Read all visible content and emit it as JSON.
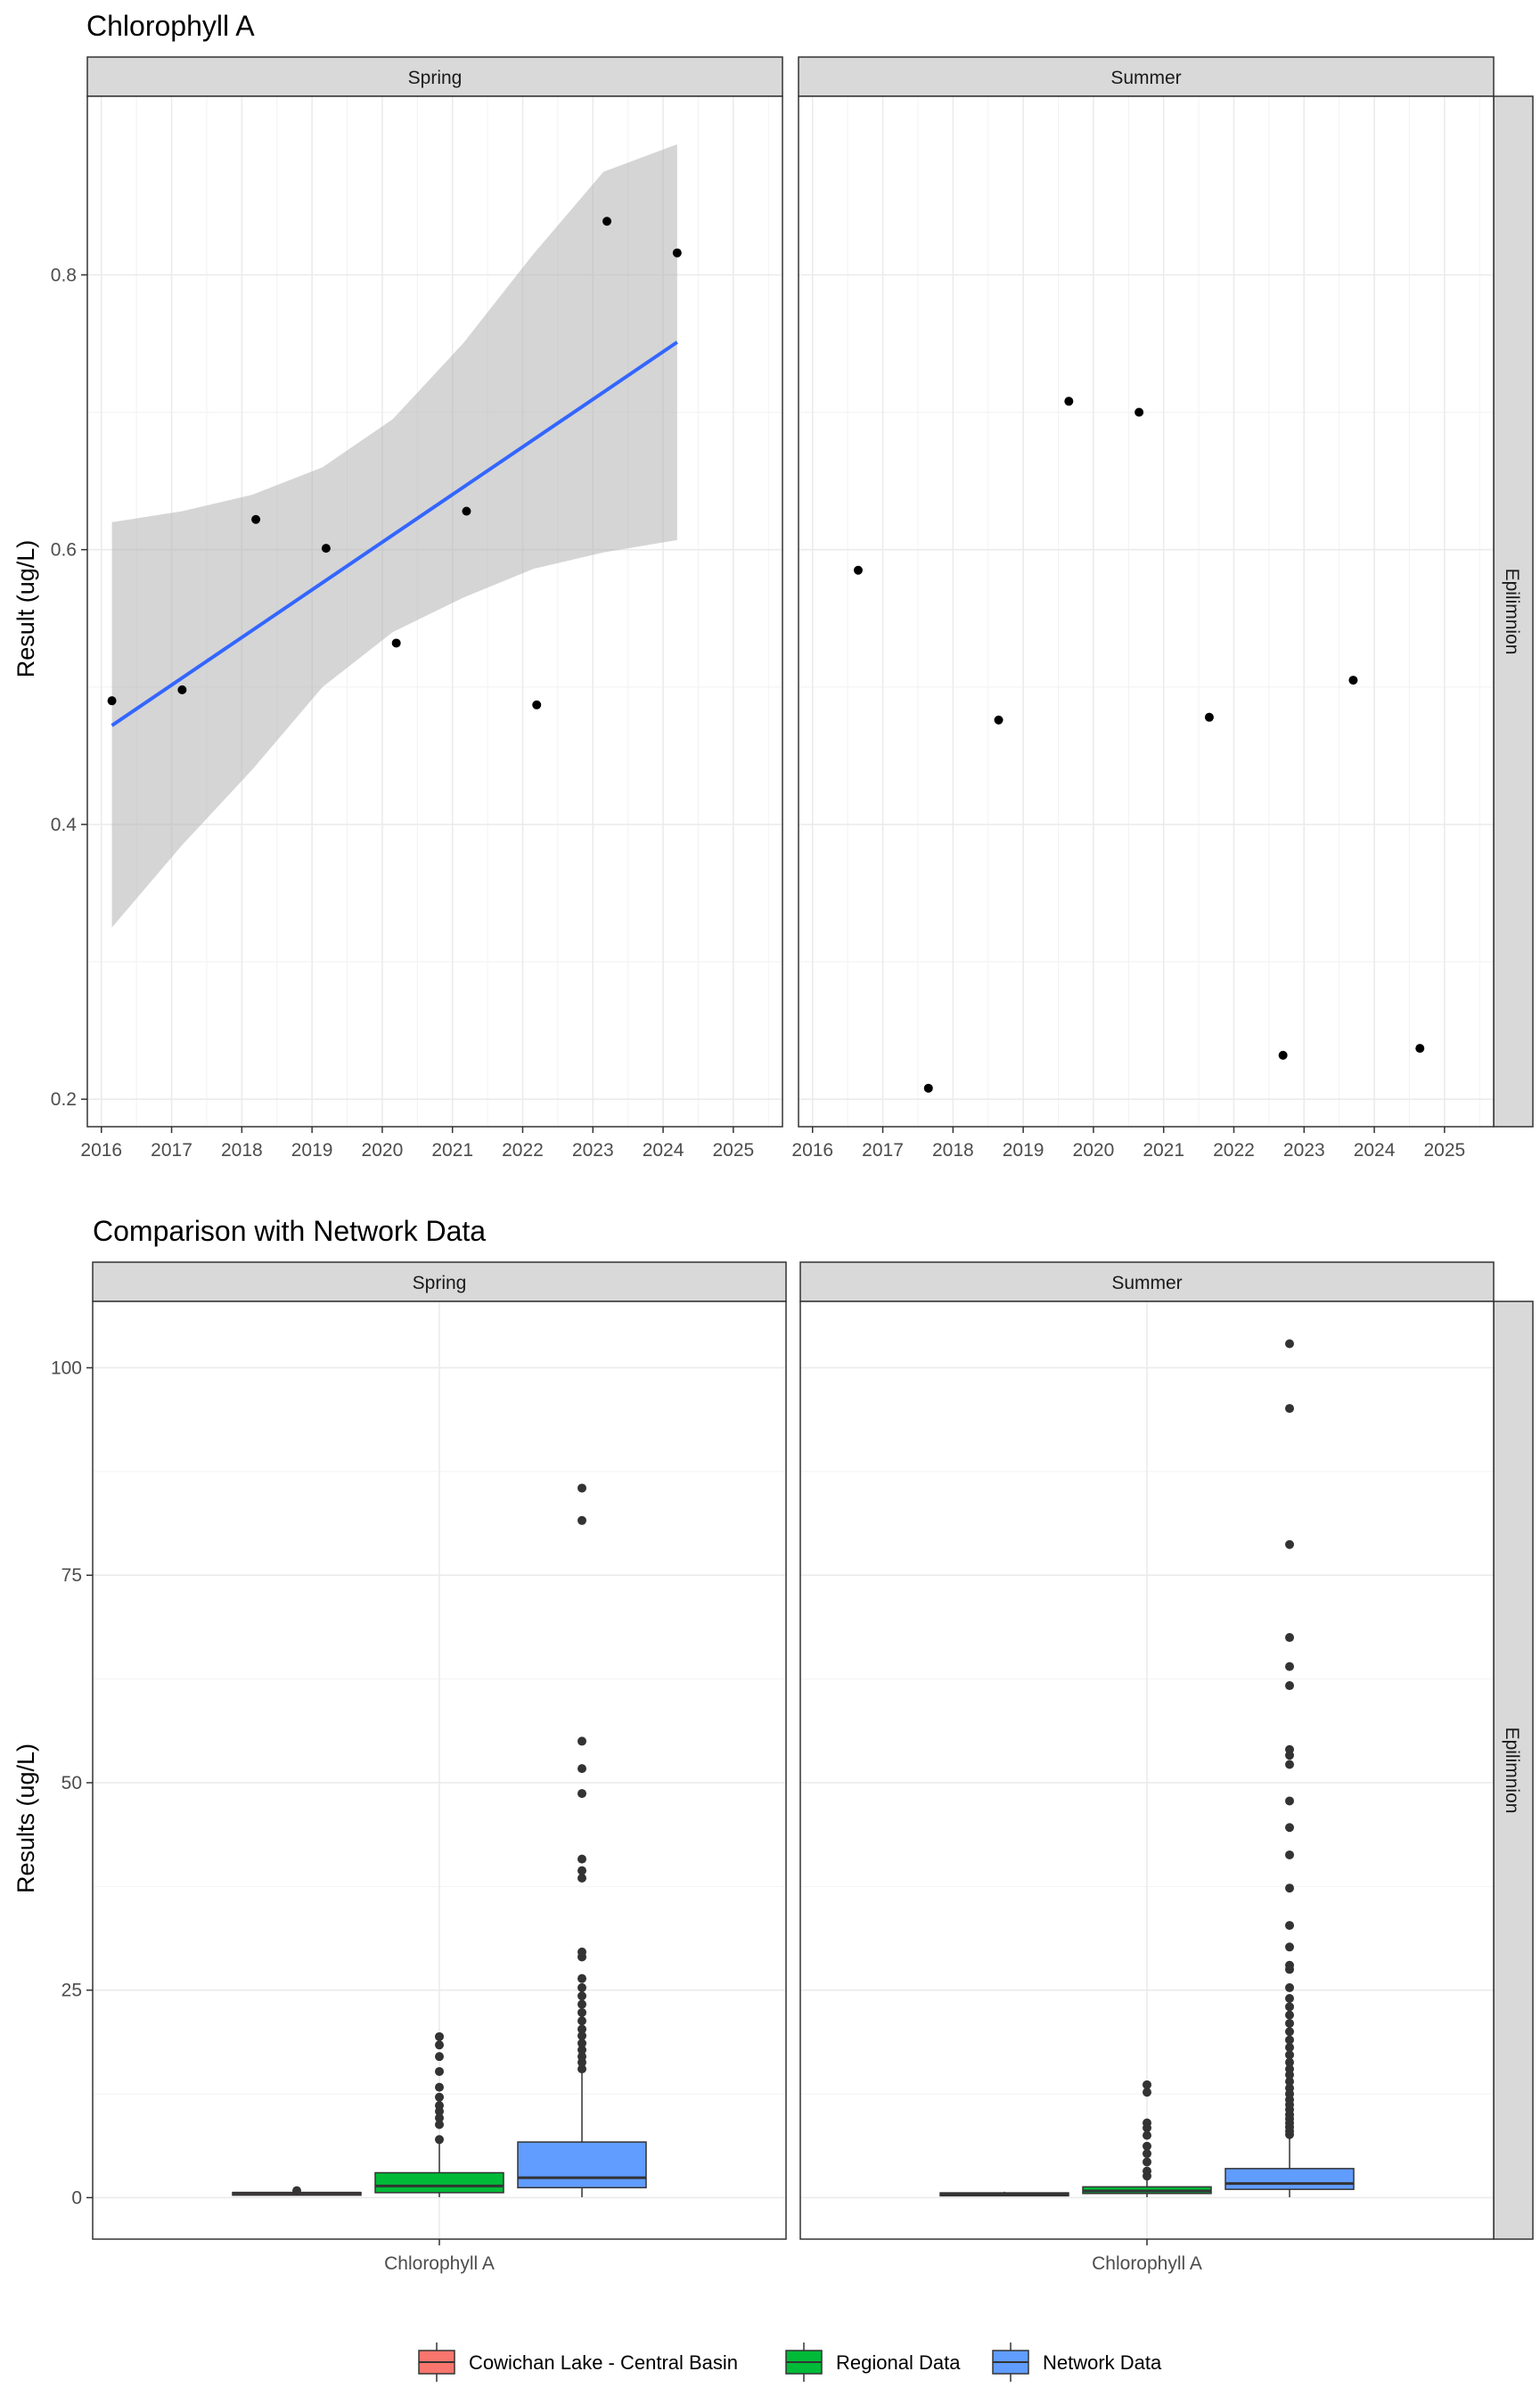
{
  "chart_data": [
    {
      "type": "scatter",
      "title": "Chlorophyll A",
      "ylabel": "Result (ug/L)",
      "xlabel": "",
      "x_ticks": [
        "2016",
        "2017",
        "2018",
        "2019",
        "2020",
        "2021",
        "2022",
        "2023",
        "2024",
        "2025"
      ],
      "y_ticks": [
        "0.2",
        "0.4",
        "0.6",
        "0.8"
      ],
      "xlim": [
        2015.8,
        2025.7
      ],
      "ylim": [
        0.18,
        0.93
      ],
      "strip_right": "Epilimnion",
      "grid": true,
      "panels": [
        {
          "name": "Spring",
          "points": [
            {
              "x": 2016.15,
              "y": 0.49
            },
            {
              "x": 2017.15,
              "y": 0.498
            },
            {
              "x": 2018.2,
              "y": 0.622
            },
            {
              "x": 2019.2,
              "y": 0.601
            },
            {
              "x": 2020.2,
              "y": 0.532
            },
            {
              "x": 2021.2,
              "y": 0.628
            },
            {
              "x": 2022.2,
              "y": 0.487
            },
            {
              "x": 2023.2,
              "y": 0.839
            },
            {
              "x": 2024.2,
              "y": 0.816
            }
          ],
          "trend": {
            "x": [
              2016.15,
              2017.15,
              2018.15,
              2019.15,
              2020.15,
              2021.15,
              2022.15,
              2023.15,
              2024.2
            ],
            "fit": [
              0.472,
              0.507,
              0.542,
              0.577,
              0.611,
              0.646,
              0.681,
              0.716,
              0.751
            ],
            "lower": [
              0.325,
              0.385,
              0.44,
              0.5,
              0.54,
              0.565,
              0.586,
              0.598,
              0.607
            ],
            "upper": [
              0.62,
              0.628,
              0.64,
              0.66,
              0.695,
              0.75,
              0.815,
              0.875,
              0.895
            ]
          }
        },
        {
          "name": "Summer",
          "points": [
            {
              "x": 2016.65,
              "y": 0.585
            },
            {
              "x": 2017.65,
              "y": 0.208
            },
            {
              "x": 2018.65,
              "y": 0.476
            },
            {
              "x": 2019.65,
              "y": 0.708
            },
            {
              "x": 2020.65,
              "y": 0.7
            },
            {
              "x": 2021.65,
              "y": 0.478
            },
            {
              "x": 2022.7,
              "y": 0.232
            },
            {
              "x": 2023.7,
              "y": 0.505
            },
            {
              "x": 2024.65,
              "y": 0.237
            }
          ]
        }
      ],
      "colors": {
        "point": "#000000",
        "trend_line": "#3366ff",
        "ribbon": "#b3b3b3"
      }
    },
    {
      "type": "boxplot",
      "title": "Comparison with Network Data",
      "ylabel": "Results (ug/L)",
      "xlabel": "",
      "category": "Chlorophyll A",
      "y_ticks": [
        "0",
        "25",
        "50",
        "75",
        "100"
      ],
      "ylim": [
        -5,
        108
      ],
      "strip_right": "Epilimnion",
      "grid": true,
      "series": [
        {
          "name": "Cowichan Lake - Central Basin",
          "color": "#F8766D"
        },
        {
          "name": "Regional Data",
          "color": "#00BA38"
        },
        {
          "name": "Network Data",
          "color": "#619CFF"
        }
      ],
      "panels": [
        {
          "name": "Spring",
          "boxes": [
            {
              "series": "Cowichan Lake - Central Basin",
              "q1": 0.45,
              "median": 0.55,
              "q3": 0.62,
              "whisker_low": 0.45,
              "whisker_high": 0.63,
              "outliers": [
                0.84
              ]
            },
            {
              "series": "Regional Data",
              "q1": 0.6,
              "median": 1.4,
              "q3": 3.0,
              "whisker_low": 0.05,
              "whisker_high": 6.6,
              "outliers": [
                7.0,
                8.8,
                9.6,
                10.4,
                11.1,
                12.1,
                13.3,
                15.2,
                17.0,
                18.4,
                19.4
              ]
            },
            {
              "series": "Network Data",
              "q1": 1.2,
              "median": 2.4,
              "q3": 6.7,
              "whisker_low": 0.05,
              "whisker_high": 15.0,
              "outliers": [
                15.5,
                16.3,
                17.0,
                17.8,
                18.6,
                19.5,
                20.3,
                21.3,
                22.3,
                23.3,
                24.3,
                25.3,
                26.4,
                29.0,
                29.6,
                38.5,
                39.4,
                40.8,
                48.7,
                51.7,
                55.0,
                81.6,
                85.5
              ]
            }
          ]
        },
        {
          "name": "Summer",
          "boxes": [
            {
              "series": "Cowichan Lake - Central Basin",
              "q1": 0.22,
              "median": 0.38,
              "q3": 0.58,
              "whisker_low": 0.2,
              "whisker_high": 0.71,
              "outliers": []
            },
            {
              "series": "Regional Data",
              "q1": 0.5,
              "median": 0.8,
              "q3": 1.3,
              "whisker_low": 0.05,
              "whisker_high": 2.3,
              "outliers": [
                2.6,
                3.2,
                4.3,
                5.3,
                6.2,
                7.5,
                8.4,
                9.0,
                12.7,
                13.6
              ]
            },
            {
              "series": "Network Data",
              "q1": 1.0,
              "median": 1.7,
              "q3": 3.5,
              "whisker_low": 0.05,
              "whisker_high": 7.3,
              "outliers": [
                7.6,
                8.0,
                8.5,
                9.0,
                9.5,
                10.0,
                10.6,
                11.2,
                11.8,
                12.5,
                13.2,
                14.0,
                14.8,
                15.5,
                16.3,
                17.2,
                18.1,
                19.0,
                20.0,
                21.0,
                22.0,
                23.0,
                24.0,
                25.3,
                27.5,
                28.0,
                30.2,
                32.8,
                37.3,
                41.3,
                44.6,
                47.8,
                52.2,
                53.3,
                54.0,
                61.7,
                64.0,
                67.5,
                78.7,
                95.1,
                102.9
              ]
            }
          ]
        }
      ],
      "legend_position": "bottom"
    }
  ]
}
